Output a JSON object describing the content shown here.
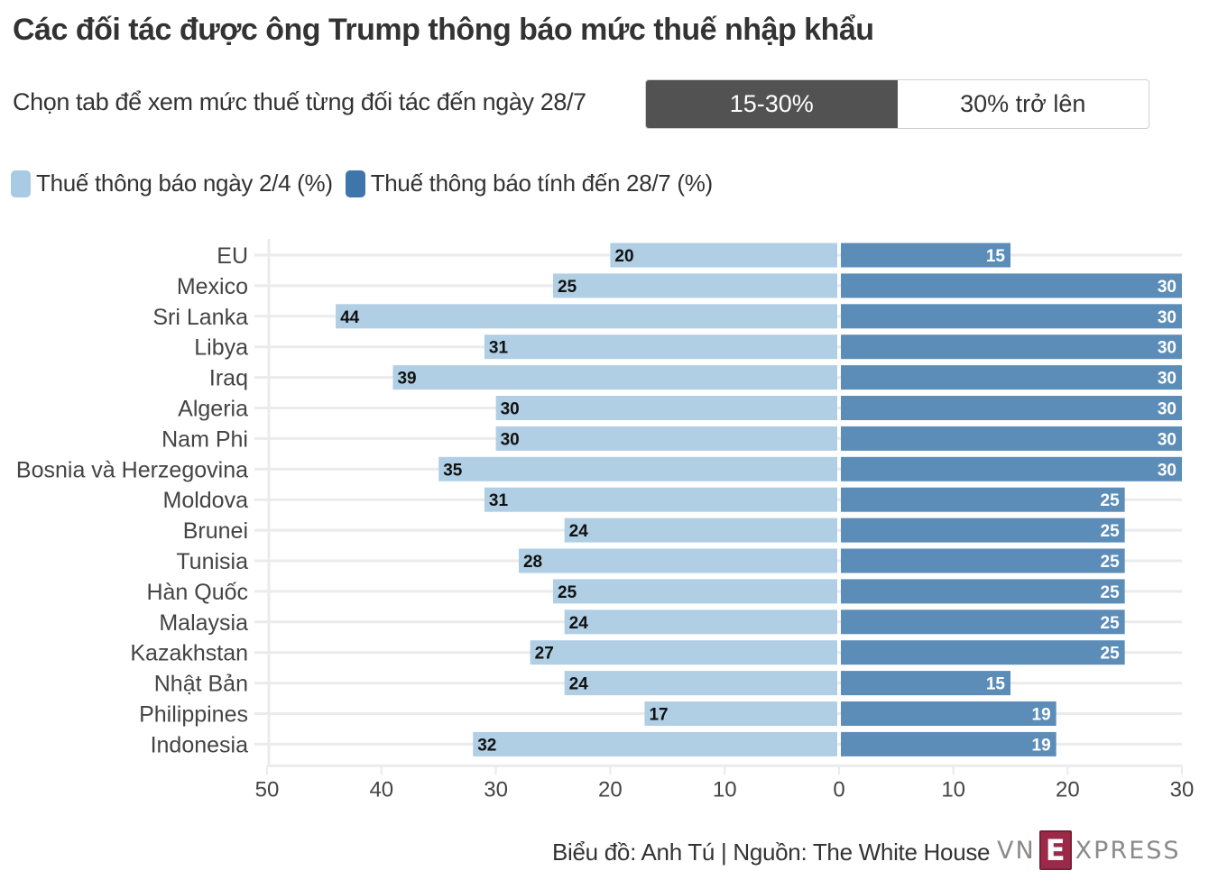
{
  "header": {
    "title": "Các đối tác được ông Trump thông báo mức thuế nhập khẩu",
    "subtitle": "Chọn tab để xem mức thuế từng đối tác đến ngày 28/7"
  },
  "tabs": [
    {
      "label": "15-30%",
      "active": true
    },
    {
      "label": "30% trở lên",
      "active": false
    }
  ],
  "colors": {
    "series_left": "#b0cfe4",
    "series_right": "#5b8db8",
    "legend_left": "#a8cbe3",
    "legend_right": "#3e76ab",
    "grid": "#ebebeb",
    "tab_active": "#525252",
    "logo_accent": "#9b2948"
  },
  "footer": {
    "credit": "Biểu đồ: Anh Tú | Nguồn: The White House",
    "logo_left": "VN",
    "logo_mid": "E",
    "logo_right": "XPRESS"
  },
  "chart_data": {
    "type": "bar",
    "orientation": "horizontal-diverging",
    "title": "Các đối tác được ông Trump thông báo mức thuế nhập khẩu",
    "legend_position": "top-left",
    "categories": [
      "EU",
      "Mexico",
      "Sri Lanka",
      "Libya",
      "Iraq",
      "Algeria",
      "Nam Phi",
      "Bosnia và Herzegovina",
      "Moldova",
      "Brunei",
      "Tunisia",
      "Hàn Quốc",
      "Malaysia",
      "Kazakhstan",
      "Nhật Bản",
      "Philippines",
      "Indonesia"
    ],
    "series": [
      {
        "name": "Thuế thông báo ngày 2/4 (%)",
        "side": "left",
        "values": [
          20,
          25,
          44,
          31,
          39,
          30,
          30,
          35,
          31,
          24,
          28,
          25,
          24,
          27,
          24,
          17,
          32
        ]
      },
      {
        "name": "Thuế thông báo tính đến 28/7 (%)",
        "side": "right",
        "values": [
          15,
          30,
          30,
          30,
          30,
          30,
          30,
          30,
          25,
          25,
          25,
          25,
          25,
          25,
          15,
          19,
          19
        ]
      }
    ],
    "xlim_left": [
      0,
      50
    ],
    "xlim_right": [
      0,
      30
    ],
    "x_ticks_left": [
      "50",
      "40",
      "30",
      "20",
      "10",
      "0"
    ],
    "x_ticks_right": [
      "10",
      "20",
      "30"
    ],
    "grid": true
  }
}
